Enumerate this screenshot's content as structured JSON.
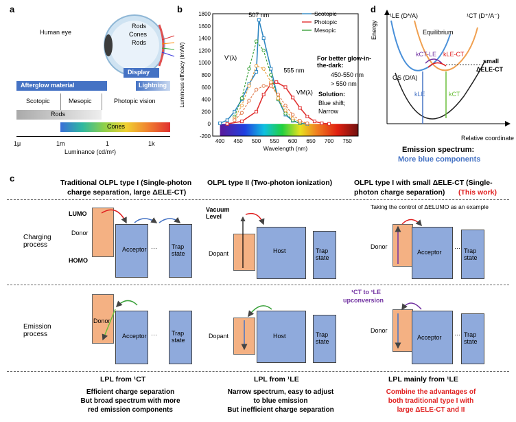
{
  "panels": {
    "a": {
      "letter": "a",
      "human_eye": "Human eye",
      "eye_labels": [
        "Rods",
        "Cones",
        "Rods"
      ],
      "afterglow": "Afterglow material",
      "display": "Display",
      "lightning": "Lightning",
      "scotopic": "Scotopic",
      "mesopic": "Mesopic",
      "photopic": "Photopic vision",
      "rods": "Rods",
      "cones": "Cones",
      "ticks": [
        "1μ",
        "1m",
        "1",
        "1k"
      ],
      "xlabel": "Luminance (cd/m²)"
    },
    "b": {
      "letter": "b",
      "ylabel": "Luminous efficacy (lm/W)",
      "xlabel": "Wavelength (nm)",
      "peak1": "507 nm",
      "peak2": "555 nm",
      "v_prime": "V'(λ)",
      "v_m": "VM(λ)",
      "legend": [
        "Scotopic",
        "Photopic",
        "Mesopic"
      ],
      "note_title": "For better glow-in-the-dark:",
      "note_up": "450-550 nm",
      "note_down": "> 550 nm",
      "solution_title": "Solution:",
      "solution_1": "Blue shift;",
      "solution_2": "Narrow"
    },
    "d": {
      "letter": "d",
      "energy": "Energy",
      "le": "¹LE (D*/A)",
      "ct": "¹CT (D⁺/A⁻)",
      "equilibrium": "Equilibrium",
      "k_ct_le": "kCT-LE",
      "k_le_ct": "kLE-CT",
      "small": "small",
      "delta": "ΔELE-CT",
      "gs": "GS (D/A)",
      "k_le": "kLE",
      "k_ct": "kCT",
      "xlabel": "Relative coordinate",
      "caption_1": "Emission spectrum:",
      "caption_2": "More blue components"
    },
    "c": {
      "letter": "c",
      "col1_title_1": "Traditional OLPL type I (Single-photon",
      "col1_title_2": "charge separation, large ΔELE-CT)",
      "col2_title": "OLPL type II (Two-photon ionization)",
      "col3_title_1": "OLPL type I with small ΔELE-CT (Single-",
      "col3_title_2": "photon charge separation)",
      "col3_this": "(This work)",
      "row1": "Charging process",
      "row2": "Emission process",
      "lumo": "LUMO",
      "homo": "HOMO",
      "donor": "Donor",
      "acceptor": "Acceptor",
      "trap": "Trap state",
      "vacuum": "Vacuum Level",
      "dopant": "Dopant",
      "host": "Host",
      "dots": "···",
      "control_note": "Taking the control of ΔELUMO as an example",
      "upconv_1": "¹CT to ¹LE",
      "upconv_2": "upconversion",
      "lpl1": "LPL from ¹CT",
      "lpl2": "LPL from ¹LE",
      "lpl3": "LPL mainly from ¹LE",
      "sum1": [
        "Efficient charge separation",
        "But broad spectrum with more",
        "red emission components"
      ],
      "sum2": [
        "Narrow spectrum, easy to adjust",
        "to blue emission",
        "But inefficient charge separation"
      ],
      "sum3": [
        "Combine the advantages of",
        "both traditional type I with",
        "large ΔELE-CT and II"
      ]
    }
  },
  "chart_data": {
    "type": "line",
    "xlabel": "Wavelength (nm)",
    "ylabel": "Luminous efficacy (lm/W)",
    "xlim": [
      380,
      780
    ],
    "ylim": [
      -200,
      1800
    ],
    "xticks": [
      400,
      450,
      500,
      550,
      600,
      650,
      700,
      750
    ],
    "yticks": [
      -200,
      0,
      200,
      400,
      600,
      800,
      1000,
      1200,
      1400,
      1600,
      1800
    ],
    "series": [
      {
        "name": "Scotopic",
        "color": "#2e86c1",
        "x": [
          400,
          420,
          440,
          460,
          480,
          500,
          507,
          520,
          540,
          560,
          580,
          600,
          620,
          640
        ],
        "y": [
          10,
          60,
          200,
          400,
          650,
          850,
          1700,
          1400,
          900,
          400,
          150,
          50,
          10,
          0
        ]
      },
      {
        "name": "Photopic",
        "color": "#e03030",
        "x": [
          420,
          460,
          500,
          520,
          540,
          555,
          580,
          600,
          620,
          640,
          660,
          680,
          700
        ],
        "y": [
          0,
          40,
          200,
          480,
          650,
          683,
          600,
          430,
          260,
          120,
          40,
          10,
          0
        ]
      }
    ],
    "mesopic_markers": [
      {
        "color": "#3aa13a",
        "x": [
          440,
          460,
          480,
          500,
          520,
          540,
          560,
          580,
          600,
          620
        ],
        "y": [
          120,
          420,
          900,
          1350,
          1200,
          800,
          400,
          170,
          60,
          10
        ]
      },
      {
        "color": "#e8a040",
        "x": [
          440,
          460,
          480,
          500,
          520,
          540,
          560,
          580,
          600,
          620,
          640
        ],
        "y": [
          90,
          300,
          620,
          950,
          900,
          680,
          420,
          220,
          90,
          30,
          5
        ]
      },
      {
        "color": "#e07848",
        "x": [
          440,
          460,
          480,
          500,
          520,
          540,
          560,
          580,
          600,
          620,
          640
        ],
        "y": [
          60,
          180,
          380,
          560,
          620,
          620,
          480,
          300,
          150,
          50,
          10
        ]
      }
    ]
  }
}
